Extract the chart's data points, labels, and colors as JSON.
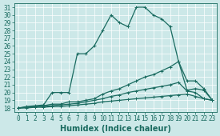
{
  "xlabel": "Humidex (Indice chaleur)",
  "bg_color": "#cce8e8",
  "grid_color": "#b0d0d0",
  "line_color": "#1a6b60",
  "xlim": [
    -0.5,
    23.5
  ],
  "ylim": [
    17.5,
    31.5
  ],
  "xticks": [
    0,
    1,
    2,
    3,
    4,
    5,
    6,
    7,
    8,
    9,
    10,
    11,
    12,
    13,
    14,
    15,
    16,
    17,
    18,
    19,
    20,
    21,
    22,
    23
  ],
  "yticks": [
    18,
    19,
    20,
    21,
    22,
    23,
    24,
    25,
    26,
    27,
    28,
    29,
    30,
    31
  ],
  "lines": [
    {
      "x": [
        0,
        1,
        2,
        3,
        4,
        5,
        6,
        7,
        8,
        9,
        10,
        11,
        12,
        13,
        14,
        15,
        16,
        17,
        18,
        19,
        20,
        21,
        22,
        23
      ],
      "y": [
        18,
        18.2,
        18.3,
        18.4,
        20.0,
        20.0,
        20.0,
        25.0,
        25.0,
        26.0,
        28.0,
        30.0,
        29.0,
        28.5,
        31.0,
        31.0,
        30.0,
        29.5,
        28.5,
        24.0,
        20.3,
        20.5,
        20.3,
        19.0
      ]
    },
    {
      "x": [
        0,
        1,
        2,
        3,
        4,
        5,
        6,
        7,
        8,
        9,
        10,
        11,
        12,
        13,
        14,
        15,
        16,
        17,
        18,
        19,
        20,
        21,
        22,
        23
      ],
      "y": [
        18,
        18.1,
        18.2,
        18.3,
        18.5,
        18.5,
        18.8,
        18.8,
        19.0,
        19.2,
        19.8,
        20.2,
        20.5,
        21.0,
        21.5,
        22.0,
        22.3,
        22.8,
        23.3,
        24.0,
        21.5,
        21.5,
        20.5,
        19.0
      ]
    },
    {
      "x": [
        0,
        1,
        2,
        3,
        4,
        5,
        6,
        7,
        8,
        9,
        10,
        11,
        12,
        13,
        14,
        15,
        16,
        17,
        18,
        19,
        20,
        21,
        22,
        23
      ],
      "y": [
        18,
        18.1,
        18.2,
        18.2,
        18.3,
        18.4,
        18.5,
        18.6,
        18.8,
        19.0,
        19.2,
        19.5,
        19.7,
        20.0,
        20.2,
        20.4,
        20.6,
        20.8,
        21.0,
        21.3,
        20.2,
        20.0,
        19.2,
        19.0
      ]
    },
    {
      "x": [
        0,
        1,
        2,
        3,
        4,
        5,
        6,
        7,
        8,
        9,
        10,
        11,
        12,
        13,
        14,
        15,
        16,
        17,
        18,
        19,
        20,
        21,
        22,
        23
      ],
      "y": [
        18,
        18.0,
        18.1,
        18.1,
        18.2,
        18.2,
        18.3,
        18.4,
        18.5,
        18.6,
        18.8,
        18.9,
        19.0,
        19.1,
        19.2,
        19.3,
        19.4,
        19.5,
        19.6,
        19.7,
        19.8,
        19.5,
        19.2,
        19.0
      ]
    }
  ],
  "markersize": 3,
  "linewidth": 0.9,
  "tick_fontsize": 5.5,
  "label_fontsize": 7
}
